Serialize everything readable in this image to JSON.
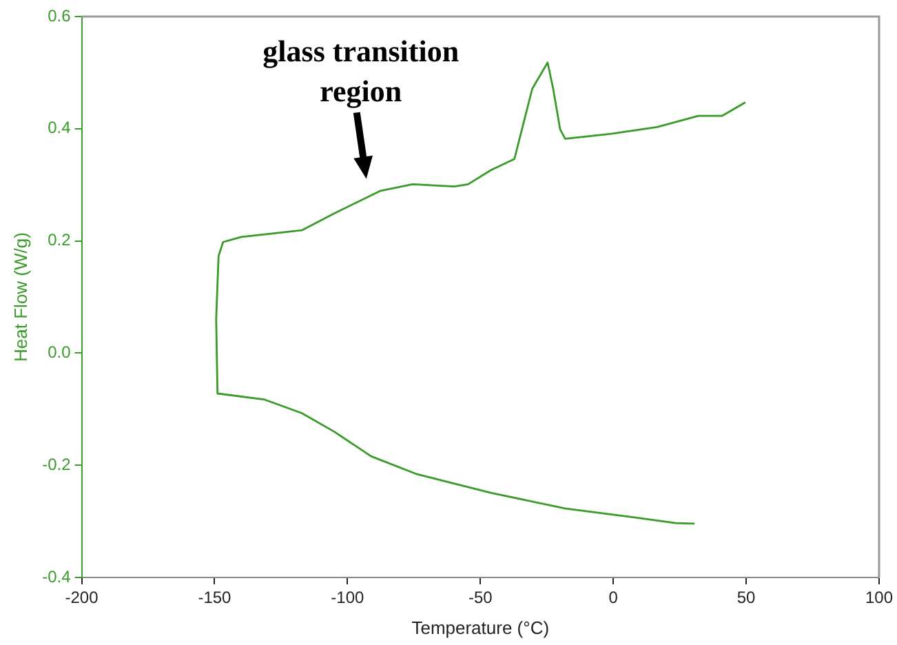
{
  "chart_data": {
    "type": "line",
    "xlabel": "Temperature (°C)",
    "ylabel": "Heat Flow (W/g)",
    "xlim": [
      -200,
      100
    ],
    "xticks": [
      -200,
      -150,
      -100,
      -50,
      0,
      50,
      100
    ],
    "ylim": [
      -0.4,
      0.6
    ],
    "yticks": [
      {
        "value": -0.4,
        "label": "-0.4"
      },
      {
        "value": -0.2,
        "label": "-0.2"
      },
      {
        "value": 0,
        "label": "0.0"
      },
      {
        "value": 0.2,
        "label": "0.2"
      },
      {
        "value": 0.4,
        "label": "0.4"
      },
      {
        "value": 0.6,
        "label": "0.6"
      }
    ],
    "grid": false,
    "legend": false,
    "marker": "none",
    "line_style": "solid",
    "series": [
      {
        "color": "#3a9a2a",
        "x": [
          30.6,
          23.6,
          8,
          -18.1,
          -46.1,
          -73.8,
          -91.1,
          -105,
          -117.2,
          -131.1,
          -148.9,
          -149.4,
          -148.5,
          -146.8,
          -140,
          -117.2,
          -105,
          -87.8,
          -75.5,
          -59.8,
          -54.6,
          -46.1,
          -37.2,
          -30.5,
          -24.7,
          -22.6,
          -20,
          -18.1,
          -0.7,
          16.5,
          32,
          41,
          49.7
        ],
        "values": [
          -0.304,
          -0.303,
          -0.293,
          -0.277,
          -0.249,
          -0.216,
          -0.184,
          -0.14,
          -0.107,
          -0.083,
          -0.072,
          0.06,
          0.173,
          0.198,
          0.207,
          0.219,
          0.249,
          0.289,
          0.301,
          0.297,
          0.301,
          0.326,
          0.346,
          0.471,
          0.518,
          0.471,
          0.399,
          0.382,
          0.391,
          0.403,
          0.423,
          0.423,
          0.447
        ]
      }
    ],
    "annotations": [
      "glass transition\nregion"
    ]
  }
}
